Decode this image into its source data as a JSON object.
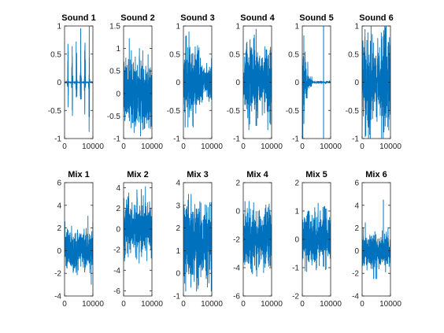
{
  "chart_data": [
    {
      "type": "line",
      "title": "Sound 1",
      "xlim": [
        0,
        10000
      ],
      "ylim": [
        -1,
        1
      ],
      "xticks": [
        0,
        10000
      ],
      "yticks": [
        -1,
        -0.5,
        0,
        0.5,
        1
      ],
      "xtick_labels": [
        "0",
        "10000"
      ],
      "ytick_labels": [
        "-1",
        "-0.5",
        "0",
        "0.5",
        "1"
      ],
      "series_color": "#0072BD",
      "signal": "impulsive bursts with near-silent gaps, peaks reaching +/-1",
      "amplitude_peak": 1.0
    },
    {
      "type": "line",
      "title": "Sound 2",
      "xlim": [
        0,
        10000
      ],
      "ylim": [
        -1,
        1.5
      ],
      "xticks": [
        0,
        10000
      ],
      "yticks": [
        -1,
        -0.5,
        0,
        0.5,
        1,
        1.5
      ],
      "xtick_labels": [
        "0",
        "10000"
      ],
      "ytick_labels": [
        "-1",
        "-0.5",
        "0",
        "0.5",
        "1",
        "1.5"
      ],
      "series_color": "#0072BD",
      "signal": "dense noise, envelope about +/-0.6 with peaks to 1.2",
      "amplitude_peak": 1.2
    },
    {
      "type": "line",
      "title": "Sound 3",
      "xlim": [
        0,
        10000
      ],
      "ylim": [
        -1,
        1
      ],
      "xticks": [
        0,
        10000
      ],
      "yticks": [
        -1,
        -0.5,
        0,
        0.5,
        1
      ],
      "xtick_labels": [
        "0",
        "10000"
      ],
      "ytick_labels": [
        "-1",
        "-0.5",
        "0",
        "0.5",
        "1"
      ],
      "series_color": "#0072BD",
      "signal": "dense noise, peaks near +0.9 and -0.8",
      "amplitude_peak": 0.9
    },
    {
      "type": "line",
      "title": "Sound 4",
      "xlim": [
        0,
        10000
      ],
      "ylim": [
        -1,
        1
      ],
      "xticks": [
        0,
        10000
      ],
      "yticks": [
        -1,
        -0.5,
        0,
        0.5,
        1
      ],
      "xtick_labels": [
        "0",
        "10000"
      ],
      "ytick_labels": [
        "-1",
        "-0.5",
        "0",
        "0.5",
        "1"
      ],
      "series_color": "#0072BD",
      "signal": "dense noise, peaks near +0.95 and -0.85",
      "amplitude_peak": 0.95
    },
    {
      "type": "line",
      "title": "Sound 5",
      "xlim": [
        0,
        10000
      ],
      "ylim": [
        -1,
        1
      ],
      "xticks": [
        0,
        10000
      ],
      "yticks": [
        -1,
        -0.5,
        0,
        0.5,
        1
      ],
      "xtick_labels": [
        "0",
        "10000"
      ],
      "ytick_labels": [
        "-1",
        "-0.5",
        "0",
        "0.5",
        "1"
      ],
      "series_color": "#0072BD",
      "signal": "decaying burst at start then near silence with a single spike near x=7500",
      "amplitude_peak": 1.0
    },
    {
      "type": "line",
      "title": "Sound 6",
      "xlim": [
        0,
        10000
      ],
      "ylim": [
        -1,
        1
      ],
      "xticks": [
        0,
        10000
      ],
      "yticks": [
        -1,
        -0.5,
        0,
        0.5,
        1
      ],
      "xtick_labels": [
        "0",
        "10000"
      ],
      "ytick_labels": [
        "-1",
        "-0.5",
        "0",
        "0.5",
        "1"
      ],
      "series_color": "#0072BD",
      "signal": "dense noise filling the full range, slightly narrower around x=5000",
      "amplitude_peak": 1.0
    },
    {
      "type": "line",
      "title": "Mix 1",
      "xlim": [
        0,
        10000
      ],
      "ylim": [
        -4,
        6
      ],
      "xticks": [
        0,
        10000
      ],
      "yticks": [
        -4,
        -2,
        0,
        2,
        4,
        6
      ],
      "xtick_labels": [
        "0",
        "10000"
      ],
      "ytick_labels": [
        "-4",
        "-2",
        "0",
        "2",
        "4",
        "6"
      ],
      "series_color": "#0072BD",
      "signal": "dense noise around 0, peaks near +3.5 and -3",
      "amplitude_peak": 3.5
    },
    {
      "type": "line",
      "title": "Mix 2",
      "xlim": [
        0,
        10000
      ],
      "ylim": [
        -6.5,
        4.5
      ],
      "xticks": [
        0,
        10000
      ],
      "yticks": [
        -6,
        -4,
        -2,
        0,
        2,
        4
      ],
      "xtick_labels": [
        "0",
        "10000"
      ],
      "ytick_labels": [
        "-6",
        "-4",
        "-2",
        "0",
        "2",
        "4"
      ],
      "series_color": "#0072BD",
      "signal": "dense noise around 0, peaks near +4.2 and -6",
      "amplitude_peak": 4.2
    },
    {
      "type": "line",
      "title": "Mix 3",
      "xlim": [
        0,
        10000
      ],
      "ylim": [
        -1,
        4
      ],
      "xticks": [
        0,
        10000
      ],
      "yticks": [
        -1,
        0,
        1,
        2,
        3,
        4
      ],
      "xtick_labels": [
        "0",
        "10000"
      ],
      "ytick_labels": [
        "-1",
        "0",
        "1",
        "2",
        "3",
        "4"
      ],
      "series_color": "#0072BD",
      "signal": "dense noise around 1.5, range about -0.8 to 3.5",
      "amplitude_peak": 3.5
    },
    {
      "type": "line",
      "title": "Mix 4",
      "xlim": [
        0,
        10000
      ],
      "ylim": [
        -6,
        2
      ],
      "xticks": [
        0,
        10000
      ],
      "yticks": [
        -6,
        -4,
        -2,
        0,
        2
      ],
      "xtick_labels": [
        "0",
        "10000"
      ],
      "ytick_labels": [
        "-6",
        "-4",
        "-2",
        "0",
        "2"
      ],
      "series_color": "#0072BD",
      "signal": "dense noise around -2, range about -5 to 0.7",
      "amplitude_peak": 0.7
    },
    {
      "type": "line",
      "title": "Mix 5",
      "xlim": [
        0,
        10000
      ],
      "ylim": [
        -2,
        2
      ],
      "xticks": [
        0,
        10000
      ],
      "yticks": [
        -2,
        -1,
        0,
        1,
        2
      ],
      "xtick_labels": [
        "0",
        "10000"
      ],
      "ytick_labels": [
        "-2",
        "-1",
        "0",
        "1",
        "2"
      ],
      "series_color": "#0072BD",
      "signal": "dense noise around 0, range about -1.8 to 1.7",
      "amplitude_peak": 1.7
    },
    {
      "type": "line",
      "title": "Mix 6",
      "xlim": [
        0,
        10000
      ],
      "ylim": [
        -4,
        6
      ],
      "xticks": [
        0,
        10000
      ],
      "yticks": [
        -4,
        -2,
        0,
        2,
        4,
        6
      ],
      "xtick_labels": [
        "0",
        "10000"
      ],
      "ytick_labels": [
        "-4",
        "-2",
        "0",
        "2",
        "4",
        "6"
      ],
      "series_color": "#0072BD",
      "signal": "dense noise around 0 with a spike near +4.5 at x=7500, range about -2.5 to 2.5 otherwise",
      "amplitude_peak": 4.5
    }
  ]
}
